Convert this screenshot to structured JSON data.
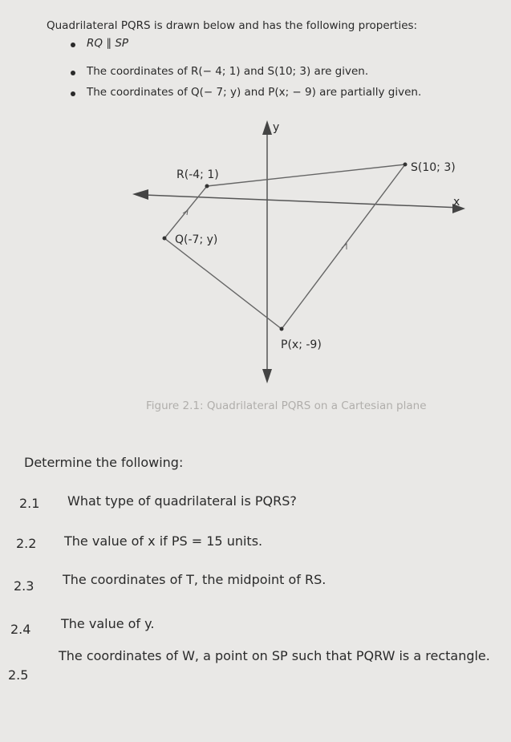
{
  "intro": "Quadrilateral PQRS is drawn below and has the following properties:",
  "bullets": [
    "RQ ∥ SP",
    "The coordinates of R(− 4; 1) and S(10; 3) are given.",
    "The coordinates of Q(− 7; y) and P(x; − 9) are partially given."
  ],
  "figure": {
    "y_axis_label": "y",
    "x_axis_label": "x",
    "points": [
      "R(-4; 1)",
      "S(10; 3)",
      "Q(-7; y)",
      "P(x; -9)"
    ],
    "caption": "Figure 2.1: Quadrilateral PQRS on a Cartesian plane"
  },
  "instruction": "Determine the following:",
  "questions": [
    {
      "number": "2.1",
      "text": "What type of quadrilateral is PQRS?"
    },
    {
      "number": "2.2",
      "text": "The value of x if PS = 15 units."
    },
    {
      "number": "2.3",
      "text": "The coordinates of T, the midpoint of RS."
    },
    {
      "number": "2.4",
      "text": "The value of y."
    },
    {
      "number": "2.5",
      "text": "The coordinates of W, a point on SP such that PQRW is a rectangle."
    }
  ]
}
